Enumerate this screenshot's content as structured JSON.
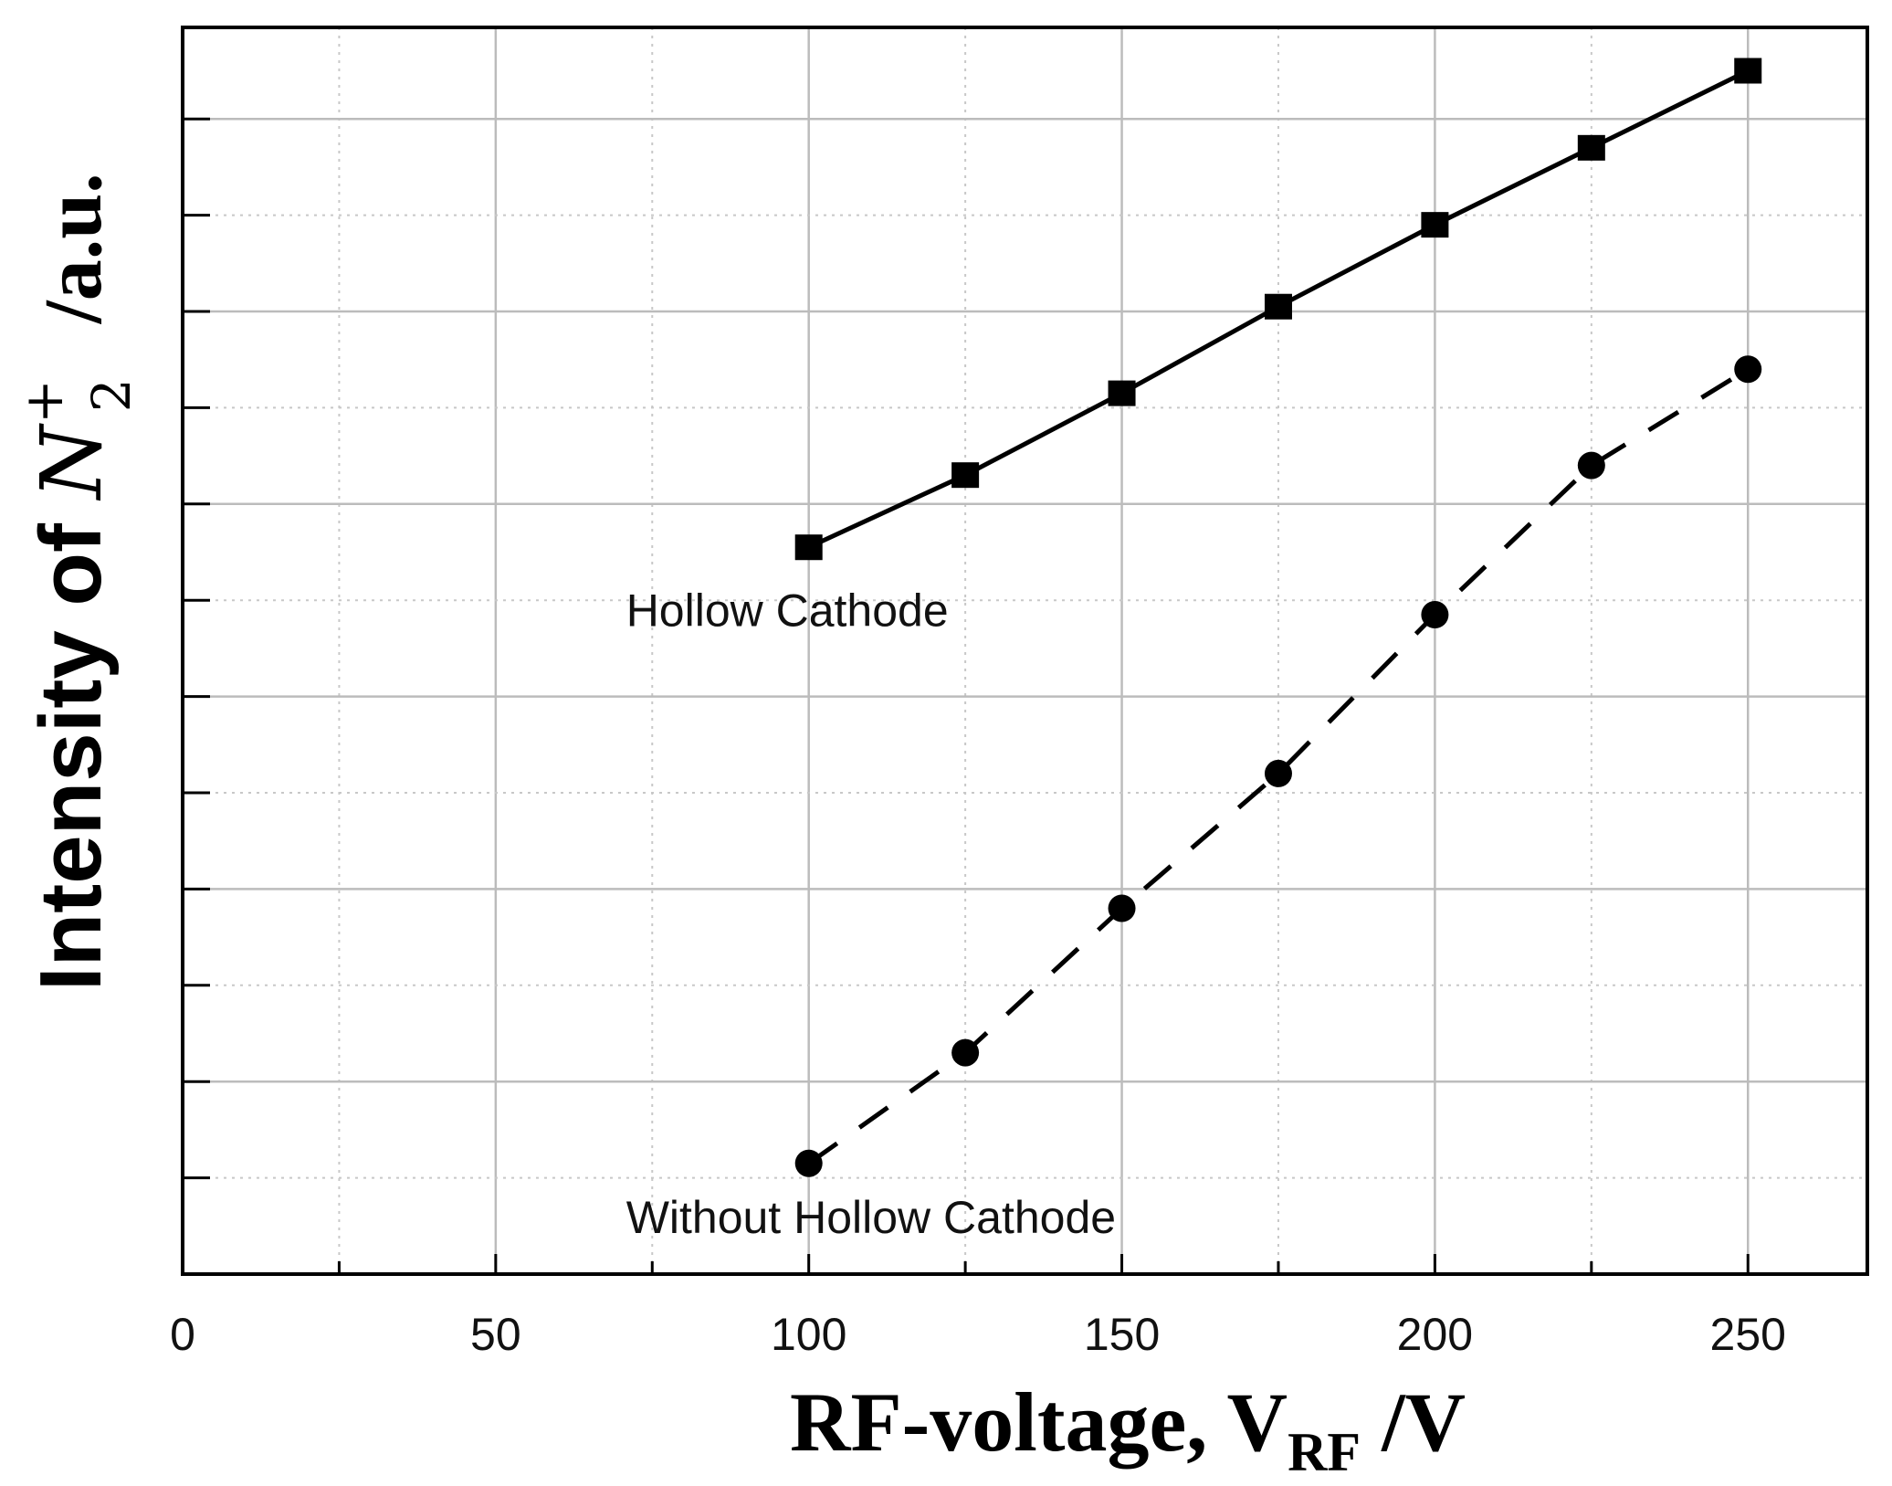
{
  "chart_data": {
    "type": "line",
    "xlabel_parts": {
      "main": "RF-voltage, V",
      "sub": "RF",
      "tail": " /V"
    },
    "ylabel_parts": {
      "prefix": "Intensity of ",
      "symbol": "N",
      "superscript": "+",
      "subscript": "2",
      "suffix": "/a.u."
    },
    "xlim": [
      0,
      270
    ],
    "xticks": [
      0,
      50,
      100,
      150,
      200,
      250
    ],
    "ylim": [
      0,
      12
    ],
    "grid": true,
    "series": [
      {
        "style": "solid",
        "marker": "square",
        "x": [
          100,
          125,
          150,
          175,
          200,
          225,
          250
        ],
        "y": [
          7.55,
          8.3,
          9.15,
          10.05,
          10.9,
          11.7,
          12.5
        ]
      },
      {
        "style": "dashed",
        "marker": "circle",
        "x": [
          100,
          125,
          150,
          175,
          200,
          225,
          250
        ],
        "y": [
          1.15,
          2.3,
          3.8,
          5.2,
          6.85,
          8.4,
          9.4
        ]
      }
    ],
    "annotations": [
      {
        "text": "Hollow Cathode",
        "x": 100,
        "y": 6.9
      },
      {
        "text": "Without Hollow Cathode",
        "x": 100,
        "y": 0.6
      }
    ]
  }
}
